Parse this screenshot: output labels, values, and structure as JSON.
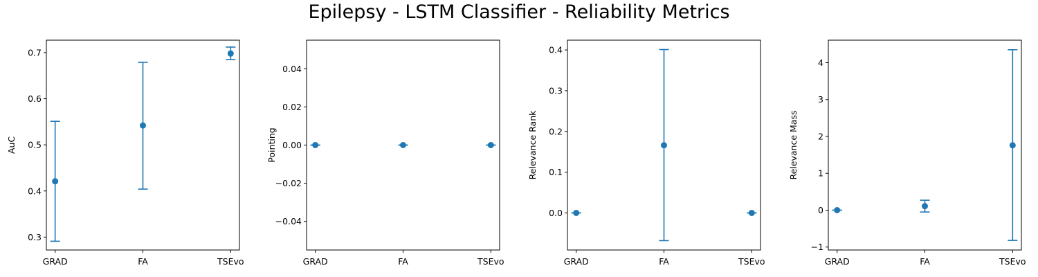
{
  "figure": {
    "title": "Epilepsy - LSTM Classifier - Reliability Metrics",
    "marker_color": "#1f77b4"
  },
  "chart_data": [
    {
      "type": "scatter",
      "categories": [
        "GRAD",
        "FA",
        "TSEvo"
      ],
      "values": [
        0.421,
        0.542,
        0.698
      ],
      "error_low": [
        0.291,
        0.404,
        0.685
      ],
      "error_high": [
        0.551,
        0.679,
        0.712
      ],
      "ylabel": "AuC",
      "ylim": [
        0.272,
        0.727
      ],
      "yticks": [
        0.3,
        0.4,
        0.5,
        0.6,
        0.7
      ],
      "ytick_labels": [
        "0.3",
        "0.4",
        "0.5",
        "0.6",
        "0.7"
      ]
    },
    {
      "type": "scatter",
      "categories": [
        "GRAD",
        "FA",
        "TSEvo"
      ],
      "values": [
        0.0,
        0.0,
        0.0
      ],
      "error_low": [
        0.0,
        0.0,
        0.0
      ],
      "error_high": [
        0.0,
        0.0,
        0.0
      ],
      "ylabel": "Pointing",
      "ylim": [
        -0.055,
        0.055
      ],
      "yticks": [
        -0.04,
        -0.02,
        0.0,
        0.02,
        0.04
      ],
      "ytick_labels": [
        "−0.04",
        "−0.02",
        "0.00",
        "0.02",
        "0.04"
      ]
    },
    {
      "type": "scatter",
      "categories": [
        "GRAD",
        "FA",
        "TSEvo"
      ],
      "values": [
        0.0,
        0.166,
        0.0
      ],
      "error_low": [
        0.0,
        -0.068,
        0.0
      ],
      "error_high": [
        0.0,
        0.401,
        0.0
      ],
      "ylabel": "Relevance Rank",
      "ylim": [
        -0.091,
        0.424
      ],
      "yticks": [
        0.0,
        0.1,
        0.2,
        0.3,
        0.4
      ],
      "ytick_labels": [
        "0.0",
        "0.1",
        "0.2",
        "0.3",
        "0.4"
      ]
    },
    {
      "type": "scatter",
      "categories": [
        "GRAD",
        "FA",
        "TSEvo"
      ],
      "values": [
        0.0,
        0.11,
        1.76
      ],
      "error_low": [
        0.0,
        -0.05,
        -0.82
      ],
      "error_high": [
        0.0,
        0.27,
        4.35
      ],
      "ylabel": "Relevance Mass",
      "ylim": [
        -1.08,
        4.61
      ],
      "yticks": [
        -1,
        0,
        1,
        2,
        3,
        4
      ],
      "ytick_labels": [
        "−1",
        "0",
        "1",
        "2",
        "3",
        "4"
      ]
    }
  ]
}
